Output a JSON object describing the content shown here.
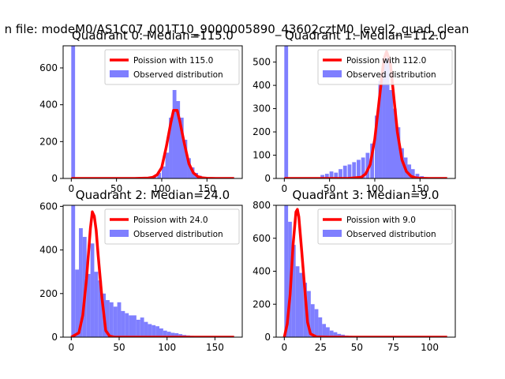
{
  "suptitle": "n file: modeM0/AS1C07_001T10_9000005890_43602cztM0_level2_quad_clean",
  "colors": {
    "hist": "#7f7fff",
    "curve": "#ff0000",
    "axis": "#000000",
    "background": "#ffffff"
  },
  "chart_data": [
    {
      "type": "histogram",
      "title": "Quadrant 0: Median=115.0",
      "xlabel": "",
      "ylabel": "",
      "xlim": [
        -9,
        189
      ],
      "ylim": [
        0,
        720
      ],
      "xticks": [
        0,
        50,
        100,
        150
      ],
      "yticks": [
        0,
        200,
        400,
        600
      ],
      "grid": false,
      "legend_position": "top-right",
      "series": [
        {
          "name": "Observed distribution",
          "kind": "histogram",
          "bin_width": 4.2,
          "bins": [
            [
              0,
              720
            ],
            [
              75,
              2
            ],
            [
              80,
              4
            ],
            [
              85,
              8
            ],
            [
              90,
              15
            ],
            [
              95,
              30
            ],
            [
              100,
              65
            ],
            [
              104,
              140
            ],
            [
              108,
              330
            ],
            [
              112,
              480
            ],
            [
              116,
              420
            ],
            [
              120,
              330
            ],
            [
              124,
              210
            ],
            [
              128,
              110
            ],
            [
              132,
              60
            ],
            [
              136,
              30
            ],
            [
              140,
              15
            ],
            [
              145,
              8
            ],
            [
              150,
              4
            ]
          ]
        },
        {
          "name": "Poission with 115.0",
          "kind": "line",
          "x": [
            0,
            70,
            85,
            90,
            95,
            100,
            105,
            110,
            113,
            117,
            120,
            125,
            130,
            135,
            140,
            145,
            150,
            160,
            180
          ],
          "y": [
            0,
            0,
            2,
            6,
            20,
            60,
            170,
            300,
            370,
            370,
            310,
            190,
            80,
            30,
            10,
            3,
            1,
            0,
            0
          ]
        }
      ]
    },
    {
      "type": "histogram",
      "title": "Quadrant 1: Median=112.0",
      "xlabel": "",
      "ylabel": "",
      "xlim": [
        -9,
        189
      ],
      "ylim": [
        0,
        570
      ],
      "xticks": [
        0,
        50,
        100,
        150
      ],
      "yticks": [
        0,
        100,
        200,
        300,
        400,
        500
      ],
      "grid": false,
      "legend_position": "top-right",
      "series": [
        {
          "name": "Observed distribution",
          "kind": "histogram",
          "bin_width": 4.2,
          "bins": [
            [
              0,
              570
            ],
            [
              40,
              15
            ],
            [
              45,
              20
            ],
            [
              50,
              30
            ],
            [
              55,
              25
            ],
            [
              60,
              40
            ],
            [
              65,
              55
            ],
            [
              70,
              60
            ],
            [
              75,
              70
            ],
            [
              80,
              80
            ],
            [
              85,
              90
            ],
            [
              90,
              110
            ],
            [
              95,
              150
            ],
            [
              100,
              270
            ],
            [
              104,
              420
            ],
            [
              108,
              510
            ],
            [
              112,
              520
            ],
            [
              116,
              380
            ],
            [
              120,
              300
            ],
            [
              124,
              220
            ],
            [
              128,
              130
            ],
            [
              132,
              90
            ],
            [
              136,
              60
            ],
            [
              140,
              40
            ],
            [
              145,
              20
            ],
            [
              150,
              10
            ]
          ]
        },
        {
          "name": "Poission with 112.0",
          "kind": "line",
          "x": [
            0,
            70,
            85,
            90,
            95,
            100,
            105,
            110,
            113,
            117,
            120,
            125,
            130,
            135,
            140,
            145,
            150,
            160,
            180
          ],
          "y": [
            0,
            0,
            5,
            20,
            60,
            170,
            340,
            510,
            545,
            500,
            390,
            200,
            80,
            30,
            10,
            3,
            1,
            0,
            0
          ]
        }
      ]
    },
    {
      "type": "histogram",
      "title": "Quadrant 2: Median=24.0",
      "xlabel": "",
      "ylabel": "",
      "xlim": [
        -8.5,
        178.5
      ],
      "ylim": [
        0,
        605
      ],
      "xticks": [
        0,
        50,
        100,
        150
      ],
      "yticks": [
        0,
        200,
        400,
        600
      ],
      "grid": false,
      "legend_position": "top-right",
      "series": [
        {
          "name": "Observed distribution",
          "kind": "histogram",
          "bin_width": 4.0,
          "bins": [
            [
              0,
              605
            ],
            [
              4,
              310
            ],
            [
              8,
              500
            ],
            [
              12,
              460
            ],
            [
              16,
              290
            ],
            [
              20,
              430
            ],
            [
              24,
              300
            ],
            [
              28,
              260
            ],
            [
              32,
              200
            ],
            [
              36,
              170
            ],
            [
              40,
              160
            ],
            [
              44,
              140
            ],
            [
              48,
              160
            ],
            [
              52,
              120
            ],
            [
              56,
              110
            ],
            [
              60,
              100
            ],
            [
              64,
              100
            ],
            [
              68,
              80
            ],
            [
              72,
              90
            ],
            [
              76,
              70
            ],
            [
              80,
              60
            ],
            [
              84,
              55
            ],
            [
              88,
              50
            ],
            [
              92,
              40
            ],
            [
              96,
              30
            ],
            [
              100,
              25
            ],
            [
              104,
              20
            ],
            [
              108,
              18
            ],
            [
              112,
              14
            ],
            [
              116,
              10
            ],
            [
              120,
              8
            ],
            [
              124,
              6
            ],
            [
              128,
              5
            ],
            [
              132,
              4
            ],
            [
              136,
              3
            ],
            [
              140,
              3
            ],
            [
              144,
              2
            ],
            [
              148,
              2
            ]
          ]
        },
        {
          "name": "Poission with 24.0",
          "kind": "line",
          "x": [
            0,
            8,
            12,
            16,
            20,
            22,
            24,
            26,
            28,
            32,
            36,
            40,
            45,
            55,
            80,
            170
          ],
          "y": [
            0,
            20,
            100,
            270,
            500,
            575,
            555,
            490,
            380,
            180,
            30,
            5,
            0,
            0,
            0,
            0
          ]
        }
      ]
    },
    {
      "type": "histogram",
      "title": "Quadrant 3: Median=9.0",
      "xlabel": "",
      "ylabel": "",
      "xlim": [
        -5.6,
        117.6
      ],
      "ylim": [
        0,
        800
      ],
      "xticks": [
        0,
        25,
        50,
        75,
        100
      ],
      "yticks": [
        0,
        200,
        400,
        600,
        800
      ],
      "grid": false,
      "legend_position": "top-right",
      "series": [
        {
          "name": "Observed distribution",
          "kind": "histogram",
          "bin_width": 2.6,
          "bins": [
            [
              0,
              800
            ],
            [
              2.6,
              700
            ],
            [
              5.2,
              560
            ],
            [
              7.8,
              430
            ],
            [
              10.4,
              390
            ],
            [
              13,
              330
            ],
            [
              15.6,
              280
            ],
            [
              18.2,
              200
            ],
            [
              20.8,
              170
            ],
            [
              23.4,
              120
            ],
            [
              26,
              80
            ],
            [
              28.6,
              60
            ],
            [
              31.2,
              40
            ],
            [
              33.8,
              30
            ],
            [
              36.4,
              20
            ],
            [
              39,
              15
            ],
            [
              41.6,
              10
            ],
            [
              44.2,
              8
            ],
            [
              46.8,
              6
            ],
            [
              49.4,
              5
            ],
            [
              52,
              4
            ],
            [
              54.6,
              3
            ],
            [
              57.2,
              3
            ],
            [
              59.8,
              2
            ],
            [
              62.4,
              2
            ]
          ]
        },
        {
          "name": "Poission with 9.0",
          "kind": "line",
          "x": [
            0,
            2,
            4,
            6,
            8,
            9,
            10,
            12,
            14,
            16,
            18,
            22,
            30,
            112
          ],
          "y": [
            0,
            80,
            260,
            560,
            760,
            775,
            730,
            520,
            300,
            90,
            20,
            2,
            0,
            0
          ]
        }
      ]
    }
  ]
}
